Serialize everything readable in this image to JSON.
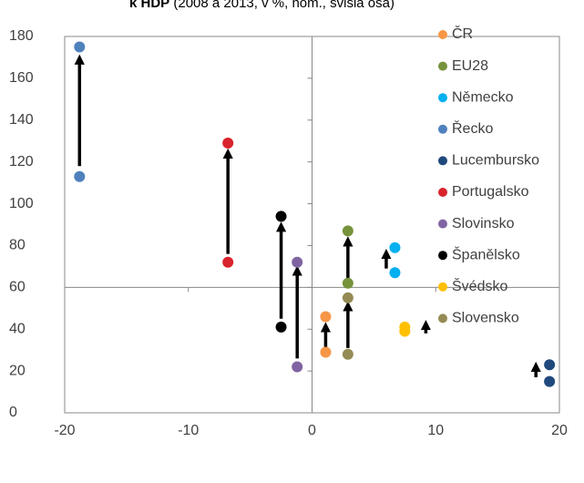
{
  "chart_data": {
    "type": "scatter",
    "title_bold": "k HDP",
    "title_rest": " (2008 a 2013, v %, nom., svislá osa)",
    "xlabel": "",
    "ylabel": "",
    "xlim": [
      -20,
      20
    ],
    "ylim": [
      0,
      180
    ],
    "x_ticks": [
      -20,
      -10,
      0,
      10,
      20
    ],
    "y_ticks": [
      0,
      20,
      40,
      60,
      80,
      100,
      120,
      140,
      160,
      180
    ],
    "x_tick_labels": [
      "-20",
      "-10",
      "0",
      "10",
      "20"
    ],
    "y_tick_labels": [
      "0",
      "20",
      "40",
      "60",
      "80",
      "100",
      "120",
      "140",
      "160",
      "180"
    ],
    "grid": false,
    "legend_position": "right",
    "series": [
      {
        "name": "ČR",
        "color": "#f79646",
        "points": [
          [
            1.1,
            46
          ],
          [
            1.1,
            29
          ]
        ]
      },
      {
        "name": "EU28",
        "color": "#77933c",
        "points": [
          [
            2.9,
            87
          ],
          [
            2.9,
            62
          ]
        ]
      },
      {
        "name": "Německo",
        "color": "#00b0f0",
        "points": [
          [
            6.7,
            79
          ],
          [
            6.7,
            67
          ]
        ]
      },
      {
        "name": "Řecko",
        "color": "#4f81bd",
        "points": [
          [
            -18.8,
            175
          ],
          [
            -18.8,
            113
          ]
        ]
      },
      {
        "name": "Lucembursko",
        "color": "#1f497d",
        "points": [
          [
            19.2,
            23
          ],
          [
            19.2,
            15
          ]
        ]
      },
      {
        "name": "Portugalsko",
        "color": "#d9232d",
        "points": [
          [
            -6.8,
            129
          ],
          [
            -6.8,
            72
          ]
        ]
      },
      {
        "name": "Slovinsko",
        "color": "#8064a2",
        "points": [
          [
            -1.2,
            72
          ],
          [
            -1.2,
            22
          ]
        ]
      },
      {
        "name": "Španělsko",
        "color": "#000000",
        "points": [
          [
            -2.5,
            94
          ],
          [
            -2.5,
            41
          ]
        ]
      },
      {
        "name": "Švédsko",
        "color": "#ffc000",
        "points": [
          [
            7.5,
            41
          ],
          [
            7.5,
            39
          ]
        ]
      },
      {
        "name": "Slovensko",
        "color": "#948a54",
        "points": [
          [
            2.9,
            55
          ],
          [
            2.9,
            28
          ]
        ]
      }
    ],
    "arrows": [
      [
        -18.8,
        118,
        -18.8,
        169
      ],
      [
        -6.8,
        76,
        -6.8,
        124
      ],
      [
        -2.5,
        45,
        -2.5,
        89
      ],
      [
        -1.2,
        26,
        -1.2,
        68
      ],
      [
        1.1,
        31,
        1.1,
        41
      ],
      [
        2.9,
        31,
        2.9,
        51
      ],
      [
        2.9,
        64,
        2.9,
        82
      ],
      [
        6.0,
        69,
        6.0,
        76
      ],
      [
        9.2,
        38,
        9.2,
        42
      ],
      [
        18.1,
        17,
        18.1,
        22
      ]
    ]
  }
}
